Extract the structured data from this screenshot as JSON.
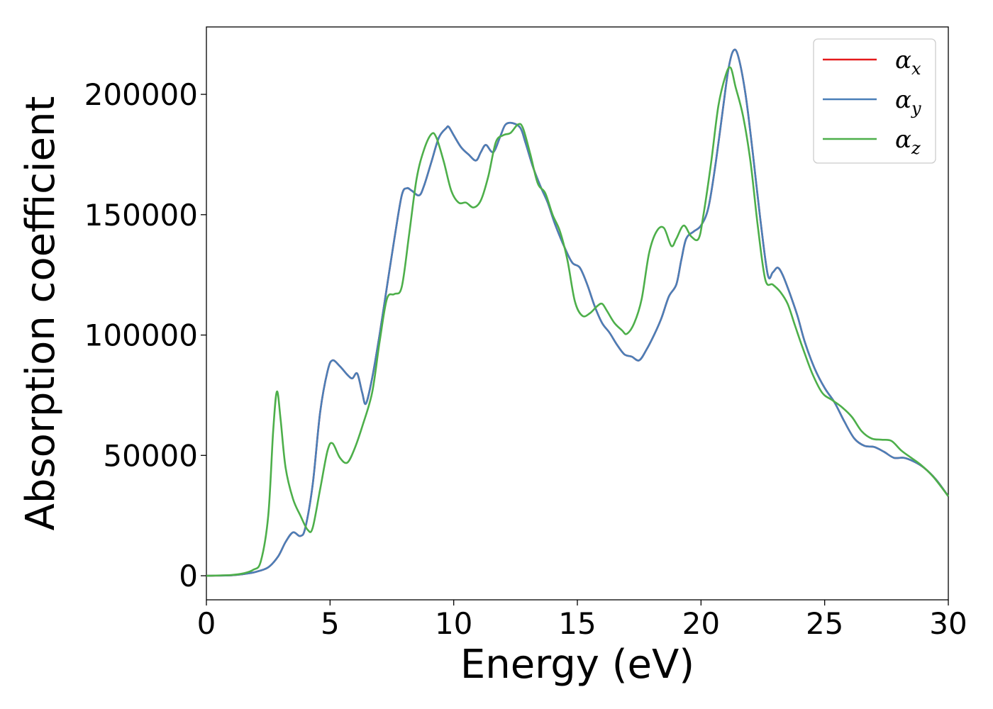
{
  "chart_data": {
    "type": "line",
    "title": "",
    "xlabel": "Energy (eV)",
    "ylabel": "Absorption coefficient",
    "xlim": [
      0,
      30
    ],
    "ylim": [
      -10000,
      228000
    ],
    "xticks": [
      0,
      5,
      10,
      15,
      20,
      25,
      30
    ],
    "yticks": [
      0,
      50000,
      100000,
      150000,
      200000
    ],
    "xtick_labels": [
      "0",
      "5",
      "10",
      "15",
      "20",
      "25",
      "30"
    ],
    "ytick_labels": [
      "0",
      "50000",
      "100000",
      "150000",
      "200000"
    ],
    "grid": false,
    "legend_position": "top-right",
    "series": [
      {
        "name": "α_x",
        "label_main": "α",
        "label_sub": "x",
        "color": "#e41a1c",
        "x": [
          0,
          1,
          1.5,
          2.0,
          2.5,
          2.9,
          3.2,
          3.5,
          3.8,
          4.0,
          4.3,
          4.6,
          4.9,
          5.1,
          5.4,
          5.7,
          5.9,
          6.1,
          6.3,
          6.45,
          6.7,
          7.0,
          7.3,
          7.6,
          7.9,
          8.1,
          8.3,
          8.6,
          8.8,
          9.1,
          9.4,
          9.7,
          9.8,
          10.0,
          10.3,
          10.6,
          10.9,
          11.1,
          11.3,
          11.6,
          11.9,
          12.1,
          12.4,
          12.7,
          12.9,
          13.2,
          13.5,
          13.8,
          14.1,
          14.5,
          14.8,
          15.1,
          15.4,
          15.7,
          16.0,
          16.3,
          16.6,
          16.9,
          17.2,
          17.5,
          17.8,
          18.1,
          18.4,
          18.7,
          19.0,
          19.2,
          19.4,
          19.7,
          20.0,
          20.3,
          20.6,
          20.9,
          21.1,
          21.3,
          21.5,
          21.8,
          22.1,
          22.4,
          22.7,
          22.9,
          23.1,
          23.3,
          23.6,
          23.9,
          24.2,
          24.6,
          25.0,
          25.4,
          25.8,
          26.2,
          26.6,
          27.0,
          27.4,
          27.8,
          28.2,
          28.6,
          29.0,
          29.5,
          30.0
        ],
        "y": [
          0,
          200,
          700,
          1600,
          3500,
          8000,
          14000,
          18000,
          16500,
          20000,
          38000,
          68000,
          85000,
          89500,
          87000,
          83500,
          82000,
          84000,
          76000,
          71500,
          82000,
          100000,
          120000,
          140000,
          158000,
          161000,
          160000,
          158000,
          162000,
          172000,
          182000,
          186000,
          186500,
          183000,
          178000,
          175000,
          172500,
          176000,
          179000,
          176000,
          183000,
          187500,
          188000,
          186000,
          180000,
          170000,
          162000,
          155000,
          146000,
          136000,
          130000,
          128000,
          121000,
          112000,
          105000,
          101000,
          96000,
          92000,
          91000,
          89500,
          94000,
          100000,
          107000,
          116000,
          121000,
          131000,
          140000,
          143000,
          145500,
          153000,
          172000,
          195000,
          210000,
          218000,
          216000,
          200000,
          175000,
          148000,
          125000,
          126000,
          128000,
          125000,
          117000,
          108000,
          97000,
          86000,
          78000,
          72000,
          64000,
          57000,
          54000,
          53500,
          51500,
          49000,
          49000,
          47500,
          45000,
          40000,
          33000
        ]
      },
      {
        "name": "α_y",
        "label_main": "α",
        "label_sub": "y",
        "color": "#4a7fb8",
        "x": [
          0,
          1,
          1.5,
          2.0,
          2.5,
          2.9,
          3.2,
          3.5,
          3.8,
          4.0,
          4.3,
          4.6,
          4.9,
          5.1,
          5.4,
          5.7,
          5.9,
          6.1,
          6.3,
          6.45,
          6.7,
          7.0,
          7.3,
          7.6,
          7.9,
          8.1,
          8.3,
          8.6,
          8.8,
          9.1,
          9.4,
          9.7,
          9.8,
          10.0,
          10.3,
          10.6,
          10.9,
          11.1,
          11.3,
          11.6,
          11.9,
          12.1,
          12.4,
          12.7,
          12.9,
          13.2,
          13.5,
          13.8,
          14.1,
          14.5,
          14.8,
          15.1,
          15.4,
          15.7,
          16.0,
          16.3,
          16.6,
          16.9,
          17.2,
          17.5,
          17.8,
          18.1,
          18.4,
          18.7,
          19.0,
          19.2,
          19.4,
          19.7,
          20.0,
          20.3,
          20.6,
          20.9,
          21.1,
          21.3,
          21.5,
          21.8,
          22.1,
          22.4,
          22.7,
          22.9,
          23.1,
          23.3,
          23.6,
          23.9,
          24.2,
          24.6,
          25.0,
          25.4,
          25.8,
          26.2,
          26.6,
          27.0,
          27.4,
          27.8,
          28.2,
          28.6,
          29.0,
          29.5,
          30.0
        ],
        "y": [
          0,
          200,
          700,
          1600,
          3500,
          8000,
          14000,
          18000,
          16500,
          20000,
          38000,
          68000,
          85000,
          89500,
          87000,
          83500,
          82000,
          84000,
          76000,
          71500,
          82000,
          100000,
          120000,
          140000,
          158000,
          161000,
          160000,
          158000,
          162000,
          172000,
          182000,
          186000,
          186500,
          183000,
          178000,
          175000,
          172500,
          176000,
          179000,
          176000,
          183000,
          187500,
          188000,
          186000,
          180000,
          170000,
          162000,
          155000,
          146000,
          136000,
          130000,
          128000,
          121000,
          112000,
          105000,
          101000,
          96000,
          92000,
          91000,
          89500,
          94000,
          100000,
          107000,
          116000,
          121000,
          131000,
          140000,
          143000,
          145500,
          153000,
          172000,
          195000,
          210000,
          218000,
          216000,
          200000,
          175000,
          148000,
          125000,
          126000,
          128000,
          125000,
          117000,
          108000,
          97000,
          86000,
          78000,
          72000,
          64000,
          57000,
          54000,
          53500,
          51500,
          49000,
          49000,
          47500,
          45000,
          40000,
          33000
        ]
      },
      {
        "name": "α_z",
        "label_main": "α",
        "label_sub": "z",
        "color": "#4daf4a",
        "x": [
          0,
          1,
          1.5,
          1.9,
          2.2,
          2.5,
          2.7,
          2.85,
          3.0,
          3.2,
          3.5,
          3.8,
          4.1,
          4.3,
          4.6,
          4.9,
          5.1,
          5.4,
          5.7,
          6.0,
          6.3,
          6.7,
          7.0,
          7.3,
          7.6,
          7.9,
          8.2,
          8.5,
          8.8,
          9.1,
          9.3,
          9.6,
          9.9,
          10.2,
          10.5,
          10.8,
          11.1,
          11.4,
          11.7,
          12.0,
          12.3,
          12.6,
          12.8,
          13.1,
          13.4,
          13.7,
          14.0,
          14.3,
          14.6,
          14.9,
          15.2,
          15.5,
          15.8,
          16.0,
          16.2,
          16.5,
          16.8,
          17.0,
          17.3,
          17.6,
          17.9,
          18.2,
          18.5,
          18.8,
          19.0,
          19.3,
          19.6,
          19.9,
          20.1,
          20.4,
          20.7,
          21.0,
          21.2,
          21.4,
          21.7,
          22.0,
          22.3,
          22.6,
          22.9,
          23.2,
          23.5,
          23.8,
          24.1,
          24.5,
          24.9,
          25.3,
          25.7,
          26.1,
          26.5,
          26.9,
          27.3,
          27.7,
          28.1,
          28.5,
          28.9,
          29.4,
          30.0
        ],
        "y": [
          0,
          300,
          1000,
          2500,
          6000,
          25000,
          60000,
          76500,
          65000,
          45000,
          32000,
          25000,
          19000,
          20000,
          36000,
          52000,
          55000,
          49000,
          47000,
          53000,
          62000,
          76000,
          97000,
          115000,
          117000,
          120000,
          142000,
          165000,
          177000,
          183500,
          182000,
          172000,
          160000,
          155000,
          155000,
          153000,
          156000,
          166000,
          180000,
          183000,
          184000,
          187500,
          186000,
          175000,
          163000,
          159000,
          150000,
          143000,
          131000,
          114000,
          108000,
          109000,
          112000,
          113000,
          110000,
          105000,
          102000,
          100500,
          105000,
          115000,
          134000,
          143000,
          144500,
          137000,
          140000,
          145500,
          141000,
          140000,
          150000,
          171000,
          195000,
          208000,
          211000,
          203000,
          191000,
          172000,
          145000,
          123000,
          121000,
          118000,
          113000,
          104000,
          95000,
          84000,
          76000,
          73000,
          70000,
          66000,
          60000,
          57000,
          56500,
          56000,
          52000,
          49000,
          46000,
          41000,
          33000
        ]
      }
    ]
  }
}
